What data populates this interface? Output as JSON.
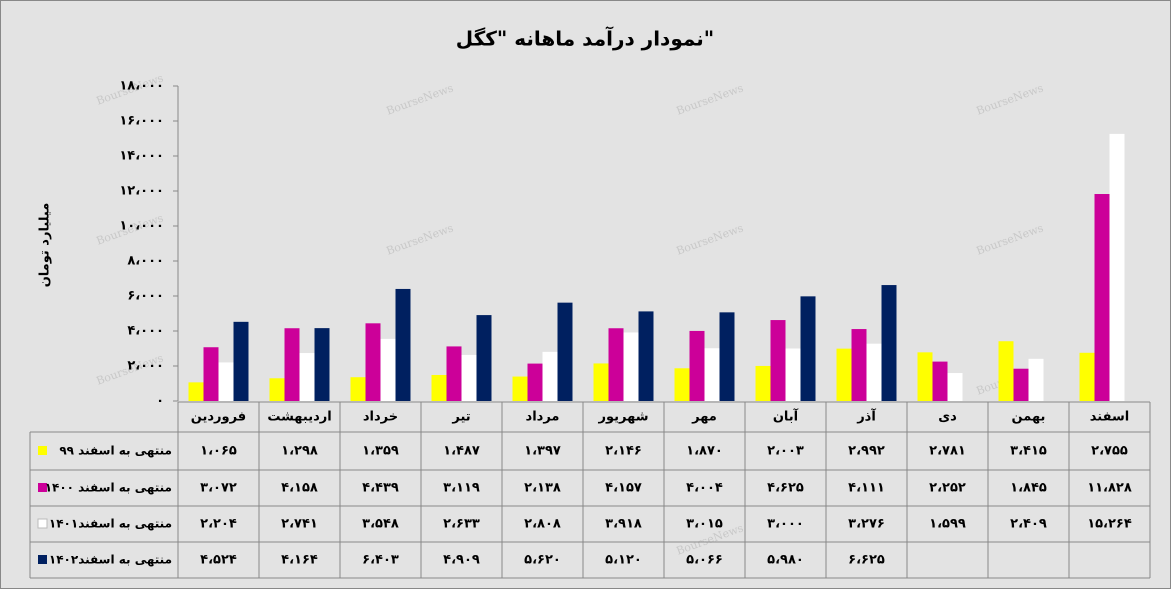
{
  "chart_data": {
    "type": "bar",
    "title": "نمودار درآمد ماهانه \"کگل\"",
    "y_label": "میلیارد تومان",
    "watermark": "BourseNews",
    "categories": [
      "فروردین",
      "اردیبهشت",
      "خرداد",
      "تیر",
      "مرداد",
      "شهریور",
      "مهر",
      "آبان",
      "آذر",
      "دی",
      "بهمن",
      "اسفند"
    ],
    "ylim": [
      0,
      18000
    ],
    "yticks": [
      {
        "value": 0,
        "label": "۰"
      },
      {
        "value": 2000,
        "label": "۲،۰۰۰"
      },
      {
        "value": 4000,
        "label": "۴،۰۰۰"
      },
      {
        "value": 6000,
        "label": "۶،۰۰۰"
      },
      {
        "value": 8000,
        "label": "۸،۰۰۰"
      },
      {
        "value": 10000,
        "label": "۱۰،۰۰۰"
      },
      {
        "value": 12000,
        "label": "۱۲،۰۰۰"
      },
      {
        "value": 14000,
        "label": "۱۴،۰۰۰"
      },
      {
        "value": 16000,
        "label": "۱۶،۰۰۰"
      },
      {
        "value": 18000,
        "label": "۱۸،۰۰۰"
      }
    ],
    "series": [
      {
        "name": "منتهی به اسفند ۹۹",
        "color": "#ffff00",
        "values": [
          1065,
          1298,
          1359,
          1487,
          1397,
          2146,
          1870,
          2003,
          2992,
          2781,
          3415,
          2755
        ],
        "value_labels": [
          "۱،۰۶۵",
          "۱،۲۹۸",
          "۱،۳۵۹",
          "۱،۴۸۷",
          "۱،۳۹۷",
          "۲،۱۴۶",
          "۱،۸۷۰",
          "۲،۰۰۳",
          "۲،۹۹۲",
          "۲،۷۸۱",
          "۳،۴۱۵",
          "۲،۷۵۵"
        ]
      },
      {
        "name": "منتهی به اسفند ۱۴۰۰",
        "color": "#cc0099",
        "values": [
          3072,
          4158,
          4439,
          3119,
          2138,
          4157,
          4004,
          4625,
          4111,
          2252,
          1845,
          11828
        ],
        "value_labels": [
          "۳،۰۷۲",
          "۴،۱۵۸",
          "۴،۴۳۹",
          "۳،۱۱۹",
          "۲،۱۳۸",
          "۴،۱۵۷",
          "۴،۰۰۴",
          "۴،۶۲۵",
          "۴،۱۱۱",
          "۲،۲۵۲",
          "۱،۸۴۵",
          "۱۱،۸۲۸"
        ]
      },
      {
        "name": "منتهی به اسفند۱۴۰۱",
        "color": "#ffffff",
        "values": [
          2204,
          2741,
          3548,
          2633,
          2808,
          3918,
          3015,
          3000,
          3276,
          1599,
          2409,
          15264
        ],
        "value_labels": [
          "۲،۲۰۴",
          "۲،۷۴۱",
          "۳،۵۴۸",
          "۲،۶۳۳",
          "۲،۸۰۸",
          "۳،۹۱۸",
          "۳،۰۱۵",
          "۳،۰۰۰",
          "۳،۲۷۶",
          "۱،۵۹۹",
          "۲،۴۰۹",
          "۱۵،۲۶۴"
        ]
      },
      {
        "name": "منتهی به اسفند۱۴۰۲",
        "color": "#002060",
        "values": [
          4524,
          4164,
          6403,
          4909,
          5620,
          5120,
          5066,
          5980,
          6625,
          null,
          null,
          null
        ],
        "value_labels": [
          "۴،۵۲۴",
          "۴،۱۶۴",
          "۶،۴۰۳",
          "۴،۹۰۹",
          "۵،۶۲۰",
          "۵،۱۲۰",
          "۵،۰۶۶",
          "۵،۹۸۰",
          "۶،۶۲۵",
          null,
          null,
          null
        ]
      }
    ]
  }
}
